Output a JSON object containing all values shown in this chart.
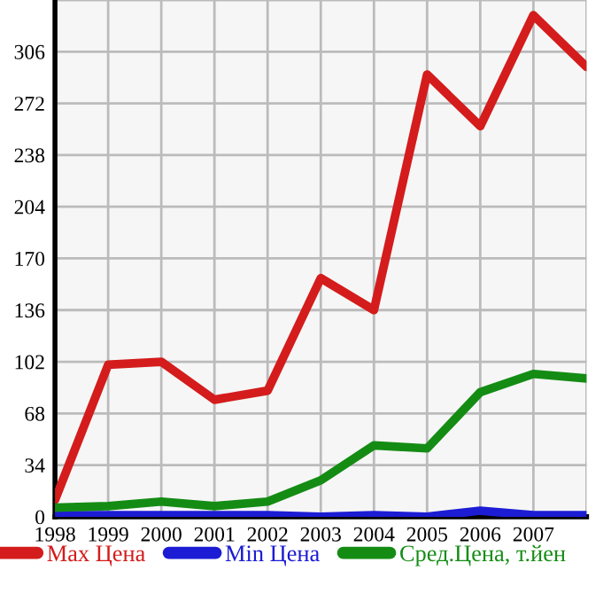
{
  "chart_data": {
    "type": "line",
    "x": [
      1998,
      1999,
      2000,
      2001,
      2002,
      2003,
      2004,
      2005,
      2006,
      2007,
      2008
    ],
    "series": [
      {
        "name": "Max Цена",
        "color": "#d41c1c",
        "values": [
          11,
          100,
          102,
          77,
          83,
          157,
          136,
          291,
          257,
          330,
          296
        ]
      },
      {
        "name": "Min Цена",
        "color": "#1c1cd4",
        "values": [
          1,
          1,
          1,
          1,
          1,
          0,
          1,
          0,
          4,
          1,
          1
        ]
      },
      {
        "name": "Сред.Цена, т.йен",
        "color": "#148c14",
        "values": [
          6,
          7,
          10,
          7,
          10,
          24,
          47,
          45,
          82,
          94,
          91
        ]
      }
    ],
    "xlim": [
      1998,
      2008
    ],
    "xticks": [
      1998,
      1999,
      2000,
      2001,
      2002,
      2003,
      2004,
      2005,
      2006,
      2007,
      {
        "value": 2008,
        "label": null
      }
    ],
    "ylim": [
      0,
      340
    ],
    "yticks": [
      0,
      34,
      68,
      102,
      136,
      170,
      204,
      238,
      272,
      306,
      {
        "value": 340,
        "label": null
      }
    ],
    "grid": true,
    "legend": "bottom",
    "marker": "none",
    "line_style": "solid"
  }
}
